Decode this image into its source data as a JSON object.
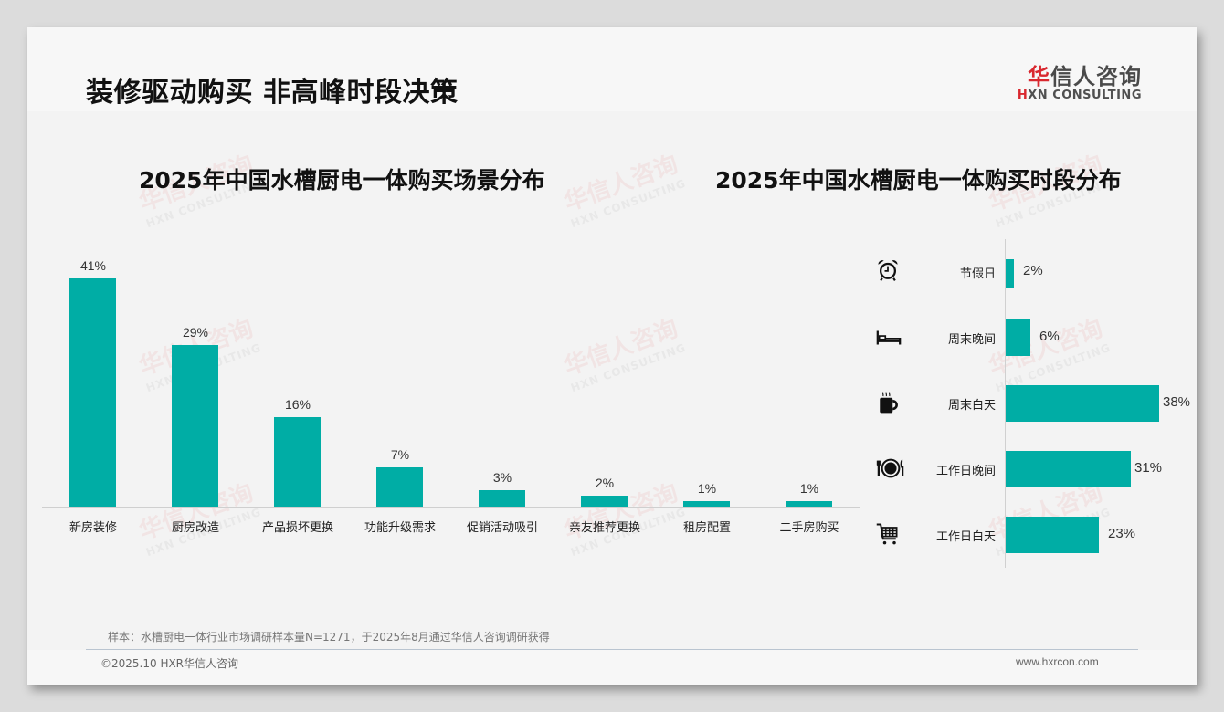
{
  "header": {
    "title": "装修驱动购买 非高峰时段决策",
    "logo_cn_first": "华",
    "logo_cn_rest": "信人咨询",
    "logo_en_first": "H",
    "logo_en_rest": "XN CONSULTING"
  },
  "watermark": {
    "cn": "华信人咨询",
    "en": "HXN CONSULTING"
  },
  "colors": {
    "bar": "#00ada5",
    "brand_red": "#d9282f"
  },
  "chart_data": [
    {
      "type": "bar",
      "title": "2025年中国水槽厨电一体购买场景分布",
      "categories": [
        "新房装修",
        "厨房改造",
        "产品损坏更换",
        "功能升级需求",
        "促销活动吸引",
        "亲友推荐更换",
        "租房配置",
        "二手房购买"
      ],
      "values": [
        41,
        29,
        16,
        7,
        3,
        2,
        1,
        1
      ],
      "labels": [
        "41%",
        "29%",
        "16%",
        "7%",
        "3%",
        "2%",
        "1%",
        "1%"
      ],
      "xlabel": "",
      "ylabel": "",
      "ylim": [
        0,
        45
      ],
      "grid": false,
      "legend": "none",
      "unit": "%"
    },
    {
      "type": "bar",
      "orientation": "horizontal",
      "title": "2025年中国水槽厨电一体购买时段分布",
      "categories": [
        "节假日",
        "周末晚间",
        "周末白天",
        "工作日晚间",
        "工作日白天"
      ],
      "values": [
        2,
        6,
        38,
        31,
        23
      ],
      "labels": [
        "2%",
        "6%",
        "38%",
        "31%",
        "23%"
      ],
      "icons": [
        "alarm-clock-icon",
        "bed-icon",
        "coffee-cup-icon",
        "plate-cutlery-icon",
        "shopping-cart-icon"
      ],
      "xlabel": "",
      "ylabel": "",
      "xlim": [
        0,
        40
      ],
      "grid": false,
      "legend": "none",
      "unit": "%"
    }
  ],
  "footer": {
    "note": "样本：水槽厨电一体行业市场调研样本量N=1271，于2025年8月通过华信人咨询调研获得",
    "copyright": "©2025.10 HXR华信人咨询",
    "website": "www.hxrcon.com"
  }
}
